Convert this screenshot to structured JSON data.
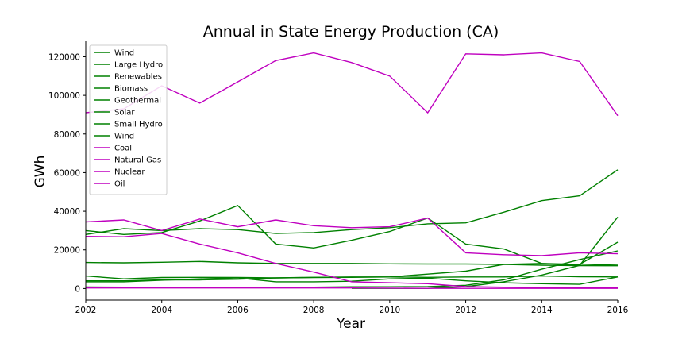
{
  "chart_data": {
    "type": "line",
    "title": "Annual in State Energy Production (CA)",
    "xlabel": "Year",
    "ylabel": "GWh",
    "xlim": [
      2002,
      2016
    ],
    "ylim": [
      -6000,
      128000
    ],
    "xticks": [
      2002,
      2004,
      2006,
      2008,
      2010,
      2012,
      2014,
      2016
    ],
    "yticks": [
      0,
      20000,
      40000,
      60000,
      80000,
      100000,
      120000
    ],
    "xtick_labels": [
      "2002",
      "2004",
      "2006",
      "2008",
      "2010",
      "2012",
      "2014",
      "2016"
    ],
    "ytick_labels": [
      "0",
      "20000",
      "40000",
      "60000",
      "80000",
      "100000",
      "120000"
    ],
    "grid": false,
    "legend_position": "top-left",
    "colors": {
      "renewable": "#008000",
      "non_renewable": "#bf00bf"
    },
    "x": [
      2002,
      2003,
      2004,
      2005,
      2006,
      2007,
      2008,
      2009,
      2010,
      2011,
      2012,
      2013,
      2014,
      2015,
      2016
    ],
    "series": [
      {
        "name": "Wind",
        "color": "#008000",
        "values": [
          4000,
          4000,
          4500,
          4500,
          4800,
          5500,
          5700,
          5800,
          6000,
          7500,
          9000,
          12500,
          13000,
          12000,
          12500
        ]
      },
      {
        "name": "Large Hydro",
        "color": "#008000",
        "values": [
          30000,
          28000,
          29000,
          35000,
          43000,
          23000,
          21000,
          25000,
          29500,
          36500,
          23000,
          20500,
          13000,
          12500,
          24000
        ]
      },
      {
        "name": "Renewables",
        "color": "#008000",
        "values": [
          28000,
          31000,
          30000,
          31000,
          30500,
          28500,
          29000,
          30500,
          31500,
          33500,
          34000,
          39500,
          45500,
          48000,
          61500
        ]
      },
      {
        "name": "Biomass",
        "color": "#008000",
        "values": [
          6500,
          5000,
          5700,
          5800,
          5700,
          5500,
          5800,
          6000,
          6000,
          5800,
          6000,
          6000,
          6500,
          6100,
          6000
        ]
      },
      {
        "name": "Geothermal",
        "color": "#008000",
        "values": [
          13500,
          13300,
          13600,
          14000,
          13300,
          13000,
          13000,
          13000,
          12800,
          12700,
          12700,
          12500,
          12100,
          11900,
          11800
        ]
      },
      {
        "name": "Solar",
        "color": "#008000",
        "values": [
          800,
          700,
          700,
          700,
          700,
          700,
          700,
          900,
          900,
          1000,
          1700,
          4500,
          10000,
          15000,
          19500
        ]
      },
      {
        "name": "Small Hydro",
        "color": "#008000",
        "values": [
          3500,
          3500,
          4300,
          5000,
          5500,
          3500,
          3500,
          3800,
          5000,
          5400,
          4000,
          3000,
          2500,
          2200,
          6000
        ]
      },
      {
        "name": "Wind",
        "color": "#008000",
        "x": [
          2009,
          2010,
          2011,
          2012,
          2013,
          2014,
          2015,
          2016
        ],
        "values": [
          100,
          100,
          100,
          1000,
          3500,
          7000,
          12000,
          37000
        ]
      },
      {
        "name": "Coal",
        "color": "#bf00bf",
        "values": [
          27000,
          26800,
          28500,
          23000,
          18500,
          13000,
          8500,
          3500,
          3000,
          2500,
          1000,
          700,
          600,
          400,
          300
        ]
      },
      {
        "name": "Natural Gas",
        "color": "#bf00bf",
        "values": [
          91000,
          93000,
          105000,
          96000,
          107000,
          118000,
          122000,
          117000,
          110000,
          91000,
          121500,
          121000,
          122000,
          117500,
          89500
        ]
      },
      {
        "name": "Nuclear",
        "color": "#bf00bf",
        "values": [
          34500,
          35500,
          30000,
          36000,
          32000,
          35500,
          32500,
          31500,
          32000,
          36500,
          18500,
          17500,
          17000,
          18500,
          18000
        ]
      },
      {
        "name": "Oil",
        "color": "#bf00bf",
        "values": [
          300,
          300,
          300,
          300,
          300,
          300,
          300,
          300,
          200,
          100,
          100,
          100,
          100,
          100,
          100
        ]
      }
    ]
  }
}
